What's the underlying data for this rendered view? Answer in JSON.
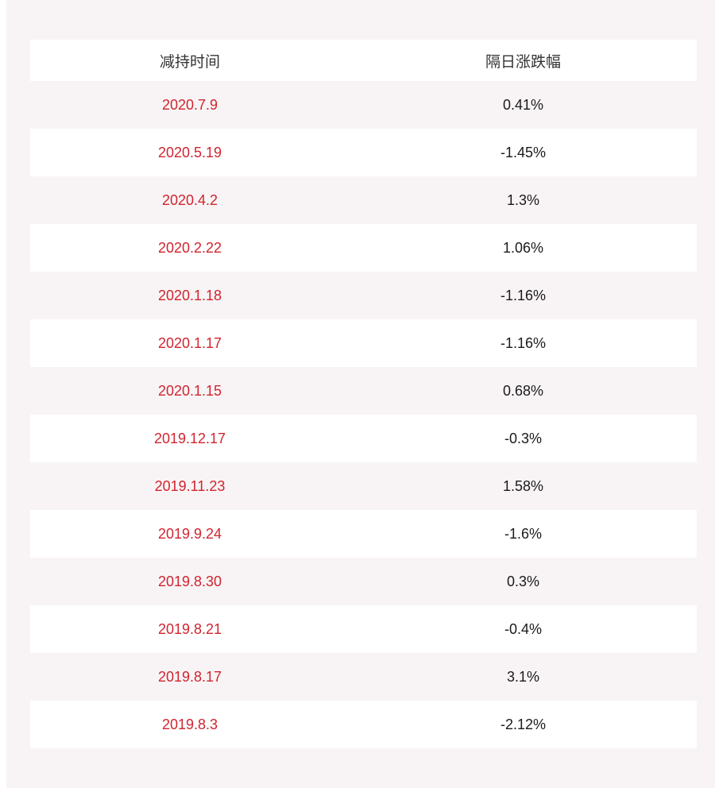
{
  "table": {
    "headers": [
      "减持时间",
      "隔日涨跌幅"
    ],
    "rows": [
      {
        "date": "2020.7.9",
        "change": "0.41%"
      },
      {
        "date": "2020.5.19",
        "change": "-1.45%"
      },
      {
        "date": "2020.4.2",
        "change": "1.3%"
      },
      {
        "date": "2020.2.22",
        "change": "1.06%"
      },
      {
        "date": "2020.1.18",
        "change": "-1.16%"
      },
      {
        "date": "2020.1.17",
        "change": "-1.16%"
      },
      {
        "date": "2020.1.15",
        "change": "0.68%"
      },
      {
        "date": "2019.12.17",
        "change": "-0.3%"
      },
      {
        "date": "2019.11.23",
        "change": "1.58%"
      },
      {
        "date": "2019.9.24",
        "change": "-1.6%"
      },
      {
        "date": "2019.8.30",
        "change": "0.3%"
      },
      {
        "date": "2019.8.21",
        "change": "-0.4%"
      },
      {
        "date": "2019.8.17",
        "change": "3.1%"
      },
      {
        "date": "2019.8.3",
        "change": "-2.12%"
      }
    ]
  },
  "colors": {
    "background": "#f8f4f5",
    "date_text": "#d1242f",
    "value_text": "#1a1a1a",
    "header_text": "#333333"
  }
}
